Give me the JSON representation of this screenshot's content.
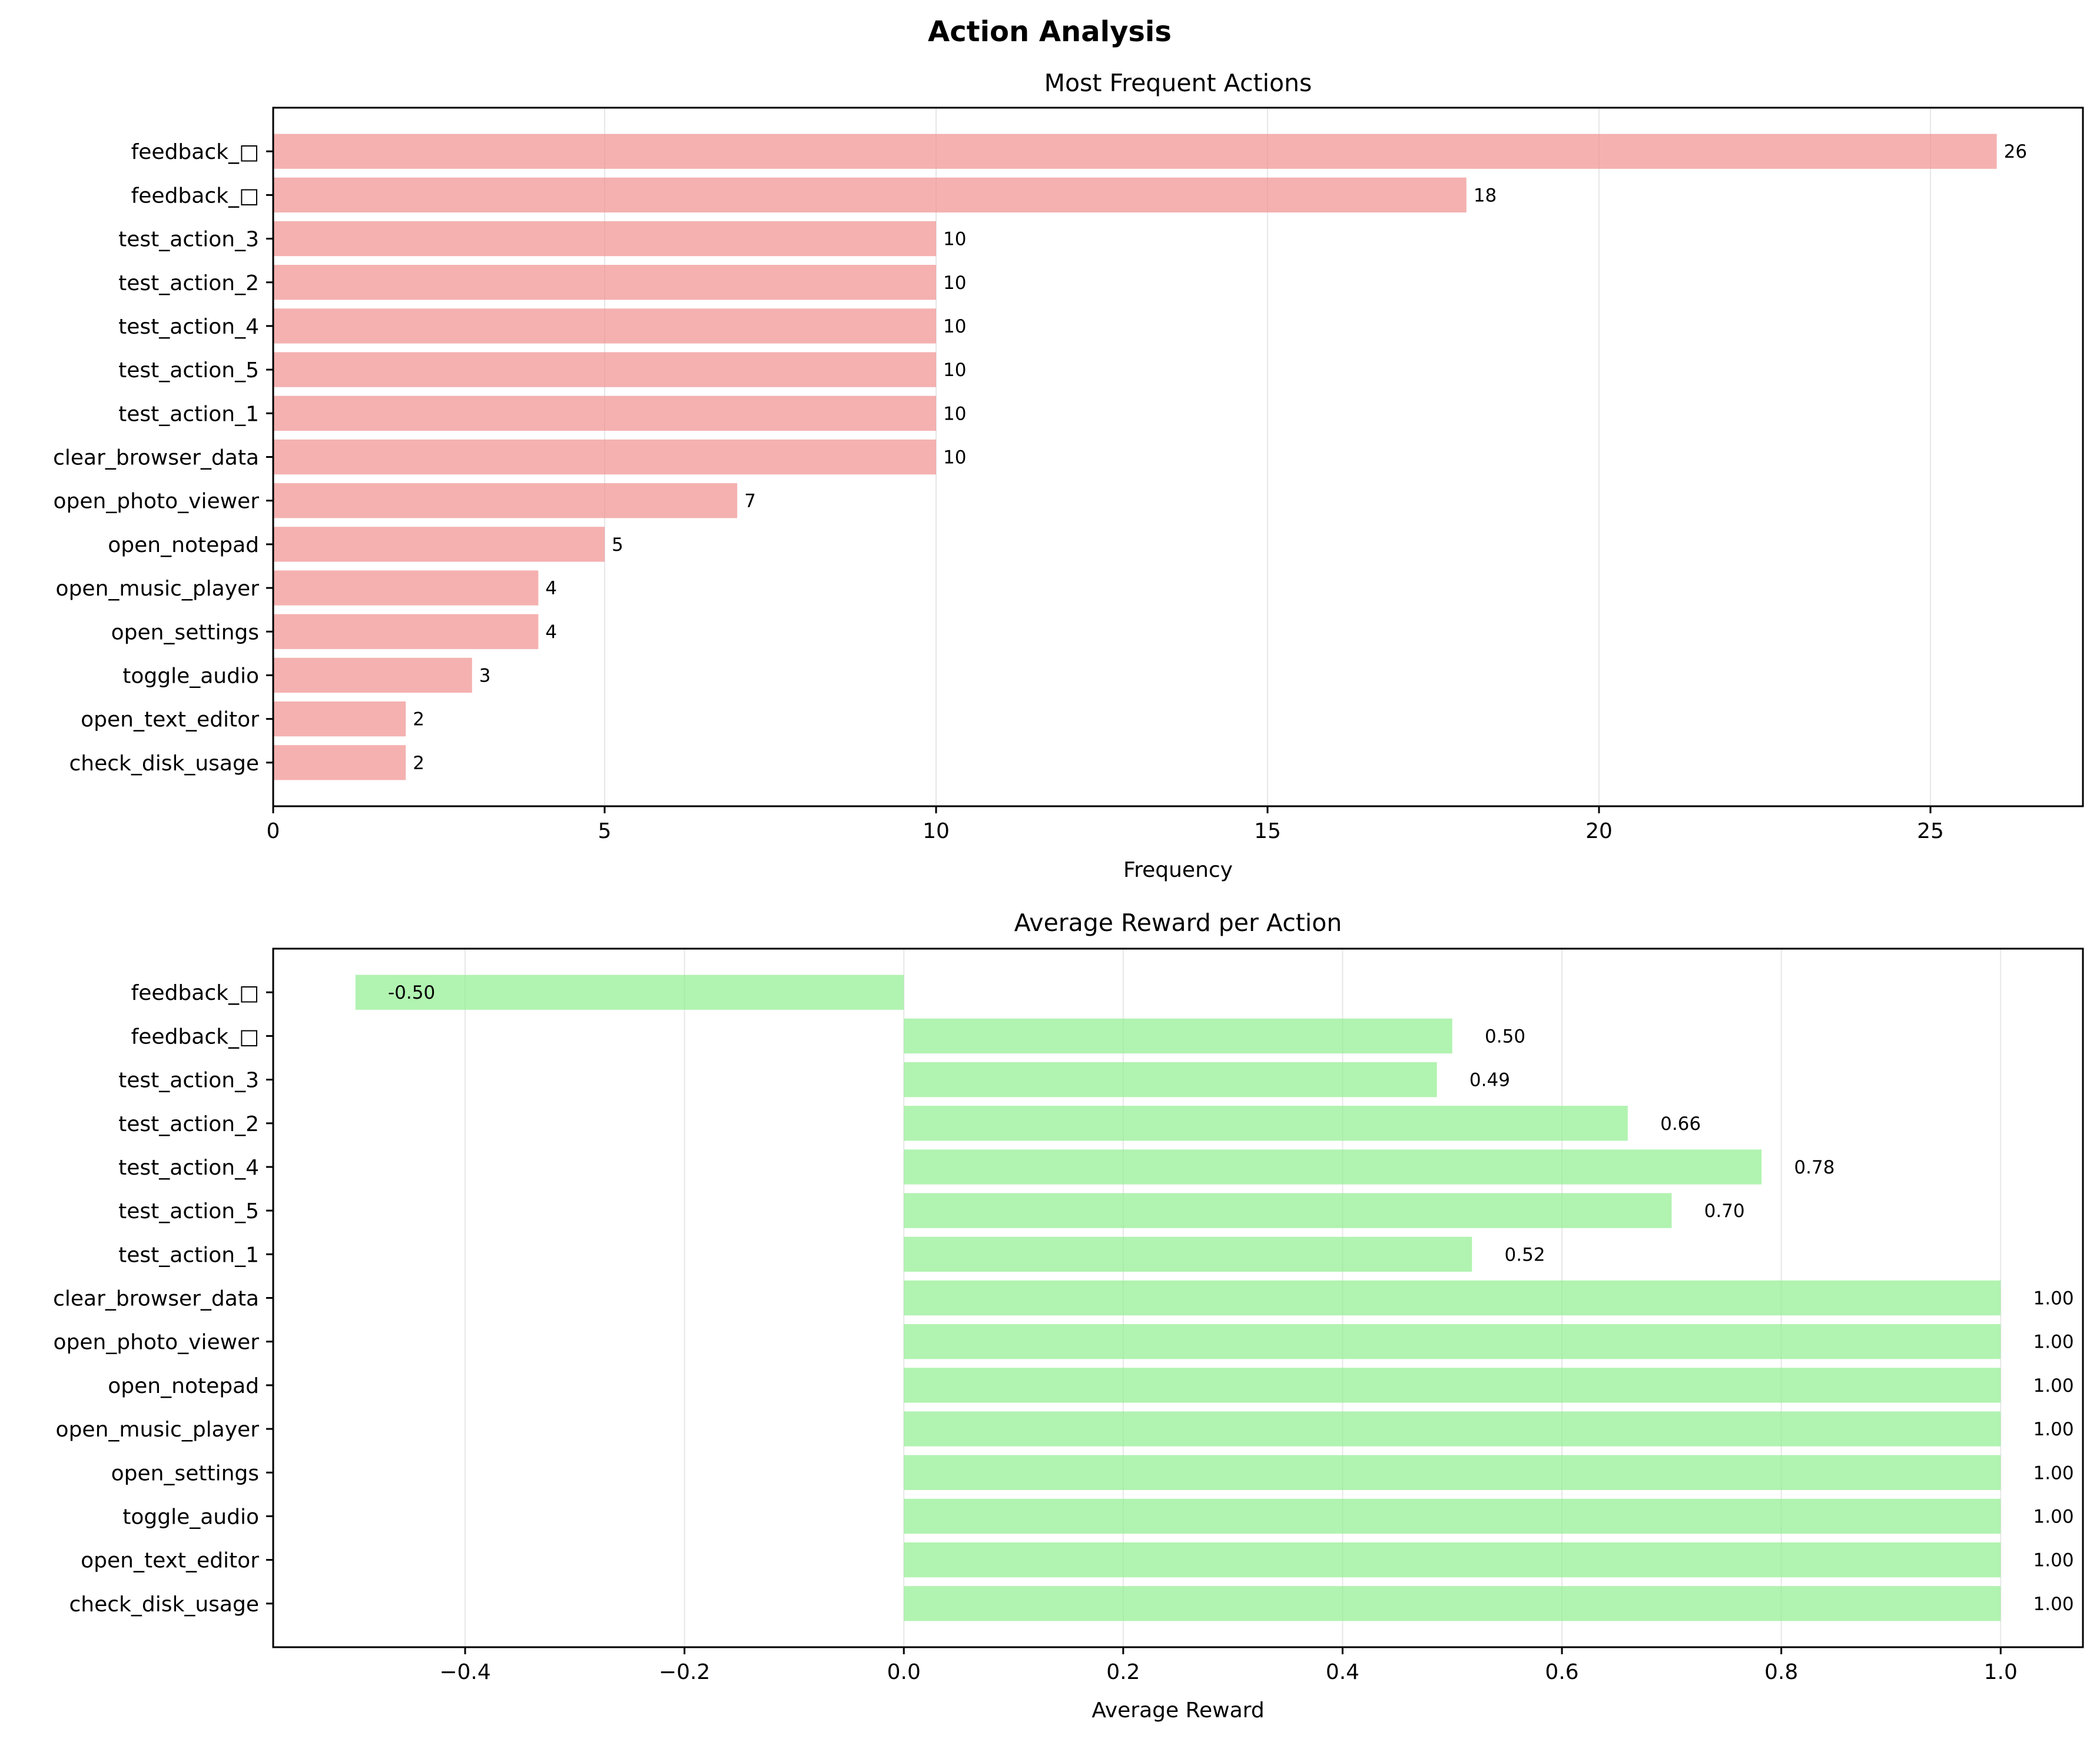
{
  "figure_title": "Action Analysis",
  "chart_data": [
    {
      "type": "bar",
      "orientation": "horizontal",
      "title": "Most Frequent Actions",
      "xlabel": "Frequency",
      "ylabel": "",
      "categories": [
        "feedback_□",
        "feedback_□",
        "test_action_3",
        "test_action_2",
        "test_action_4",
        "test_action_5",
        "test_action_1",
        "clear_browser_data",
        "open_photo_viewer",
        "open_notepad",
        "open_music_player",
        "open_settings",
        "toggle_audio",
        "open_text_editor",
        "check_disk_usage"
      ],
      "values": [
        26,
        18,
        10,
        10,
        10,
        10,
        10,
        10,
        7,
        5,
        4,
        4,
        3,
        2,
        2
      ],
      "value_labels": [
        "26",
        "18",
        "10",
        "10",
        "10",
        "10",
        "10",
        "10",
        "7",
        "5",
        "4",
        "4",
        "3",
        "2",
        "2"
      ],
      "xlim": [
        0,
        27.3
      ],
      "xticks": [
        0,
        5,
        10,
        15,
        20,
        25
      ],
      "xtick_labels": [
        "0",
        "5",
        "10",
        "15",
        "20",
        "25"
      ],
      "grid": "x",
      "color": "#f0908f",
      "label_placement": "end"
    },
    {
      "type": "bar",
      "orientation": "horizontal",
      "title": "Average Reward per Action",
      "xlabel": "Average Reward",
      "ylabel": "",
      "categories": [
        "feedback_□",
        "feedback_□",
        "test_action_3",
        "test_action_2",
        "test_action_4",
        "test_action_5",
        "test_action_1",
        "clear_browser_data",
        "open_photo_viewer",
        "open_notepad",
        "open_music_player",
        "open_settings",
        "toggle_audio",
        "open_text_editor",
        "check_disk_usage"
      ],
      "values": [
        -0.5,
        0.5,
        0.486,
        0.66,
        0.782,
        0.7,
        0.518,
        1.0,
        1.0,
        1.0,
        1.0,
        1.0,
        1.0,
        1.0,
        1.0
      ],
      "value_labels": [
        "-0.50",
        "0.50",
        "0.49",
        "0.66",
        "0.78",
        "0.70",
        "0.52",
        "1.00",
        "1.00",
        "1.00",
        "1.00",
        "1.00",
        "1.00",
        "1.00",
        "1.00"
      ],
      "xlim": [
        -0.575,
        1.075
      ],
      "xticks": [
        -0.4,
        -0.2,
        0.0,
        0.2,
        0.4,
        0.6,
        0.8,
        1.0
      ],
      "xtick_labels": [
        "−0.4",
        "−0.2",
        "0.0",
        "0.2",
        "0.4",
        "0.6",
        "0.8",
        "1.0"
      ],
      "grid": "x",
      "color": "#90ee90",
      "label_placement": "offset"
    }
  ]
}
